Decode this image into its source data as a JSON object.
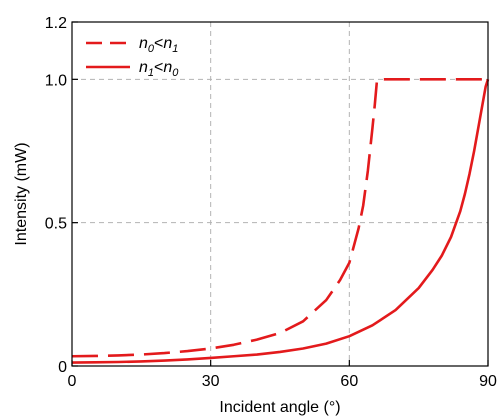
{
  "chart_data": {
    "type": "line",
    "xlabel": "Incident angle (°)",
    "ylabel": "Intensity (mW)",
    "xlim": [
      0,
      90
    ],
    "ylim": [
      0,
      1.2
    ],
    "x_ticks": [
      0,
      30,
      60,
      90
    ],
    "x_tick_labels": [
      "0",
      "30",
      "60",
      "90"
    ],
    "y_ticks": [
      0,
      0.5,
      1.0,
      1.2
    ],
    "y_tick_labels": [
      "0",
      "0.5",
      "1.0",
      "1.2"
    ],
    "grid": {
      "x": [
        30,
        60
      ],
      "y": [
        0.5,
        1.0
      ],
      "style": "dashed",
      "color": "#b3b3b3"
    },
    "legend": {
      "placement": "top-left"
    },
    "line_color": "#e31a1c",
    "series": [
      {
        "name": "n0<n1",
        "legend": {
          "sym1": "n",
          "sub1": "0",
          "op": "<",
          "sym2": "n",
          "sub2": "1"
        },
        "style": "dashed",
        "x": [
          0,
          5,
          10,
          15,
          20,
          25,
          30,
          35,
          40,
          45,
          50,
          55,
          58,
          60,
          62,
          63,
          64,
          65,
          65.5,
          66,
          66.2,
          70,
          75,
          80,
          85,
          90
        ],
        "y": [
          0.034,
          0.035,
          0.037,
          0.04,
          0.045,
          0.052,
          0.061,
          0.074,
          0.092,
          0.115,
          0.156,
          0.23,
          0.3,
          0.36,
          0.48,
          0.56,
          0.68,
          0.83,
          0.91,
          1.0,
          1.0,
          1.0,
          1.0,
          1.0,
          1.0,
          1.0
        ]
      },
      {
        "name": "n1<n0",
        "legend": {
          "sym1": "n",
          "sub1": "1",
          "op": "<",
          "sym2": "n",
          "sub2": "0"
        },
        "style": "solid",
        "x": [
          0,
          5,
          10,
          15,
          20,
          25,
          30,
          35,
          40,
          45,
          50,
          55,
          60,
          65,
          70,
          75,
          78,
          80,
          82,
          84,
          85,
          86,
          87,
          88,
          89,
          89.5,
          90
        ],
        "y": [
          0.012,
          0.013,
          0.014,
          0.016,
          0.019,
          0.023,
          0.028,
          0.034,
          0.04,
          0.049,
          0.061,
          0.078,
          0.104,
          0.142,
          0.195,
          0.272,
          0.335,
          0.385,
          0.45,
          0.54,
          0.6,
          0.67,
          0.75,
          0.84,
          0.93,
          0.975,
          1.0
        ]
      }
    ]
  }
}
